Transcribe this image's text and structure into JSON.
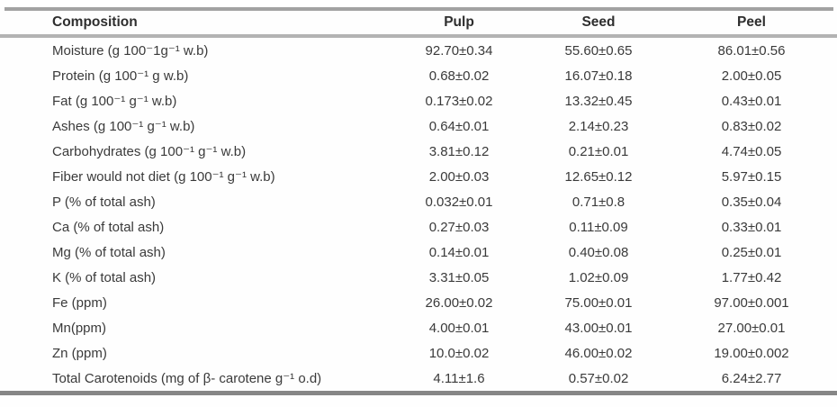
{
  "document": {
    "kind": "scientific-composition-table"
  },
  "colors": {
    "top_rule": "#a2a2a2",
    "header_rule": "#b3b3b3",
    "bottom_rule": "#868686",
    "text": "#3a3a3a"
  },
  "chart_data": {
    "type": "table",
    "columns": [
      "Composition",
      "Pulp",
      "Seed",
      "Peel"
    ],
    "rows": [
      [
        "Moisture (g 100⁻1g⁻¹ w.b)",
        "92.70±0.34",
        "55.60±0.65",
        "86.01±0.56"
      ],
      [
        "Protein (g 100⁻¹ g w.b)",
        "0.68±0.02",
        "16.07±0.18",
        "2.00±0.05"
      ],
      [
        "Fat (g 100⁻¹ g⁻¹ w.b)",
        "0.173±0.02",
        "13.32±0.45",
        "0.43±0.01"
      ],
      [
        "Ashes (g 100⁻¹ g⁻¹ w.b)",
        "0.64±0.01",
        "2.14±0.23",
        "0.83±0.02"
      ],
      [
        "Carbohydrates (g 100⁻¹ g⁻¹ w.b)",
        "3.81±0.12",
        "0.21±0.01",
        "4.74±0.05"
      ],
      [
        "Fiber would not diet (g 100⁻¹ g⁻¹ w.b)",
        "2.00±0.03",
        "12.65±0.12",
        "5.97±0.15"
      ],
      [
        "P (% of total ash)",
        "0.032±0.01",
        "0.71±0.8",
        "0.35±0.04"
      ],
      [
        "Ca (% of total ash)",
        "0.27±0.03",
        "0.11±0.09",
        "0.33±0.01"
      ],
      [
        "Mg (% of total ash)",
        "0.14±0.01",
        "0.40±0.08",
        "0.25±0.01"
      ],
      [
        "K (% of total ash)",
        "3.31±0.05",
        "1.02±0.09",
        "1.77±0.42"
      ],
      [
        "Fe (ppm)",
        "26.00±0.02",
        "75.00±0.01",
        "97.00±0.001"
      ],
      [
        "Mn(ppm)",
        "4.00±0.01",
        "43.00±0.01",
        "27.00±0.01"
      ],
      [
        "Zn (ppm)",
        "10.0±0.02",
        "46.00±0.02",
        "19.00±0.002"
      ],
      [
        "Total Carotenoids (mg of β- carotene g⁻¹ o.d)",
        "4.11±1.6",
        "0.57±0.02",
        "6.24±2.77"
      ]
    ]
  }
}
